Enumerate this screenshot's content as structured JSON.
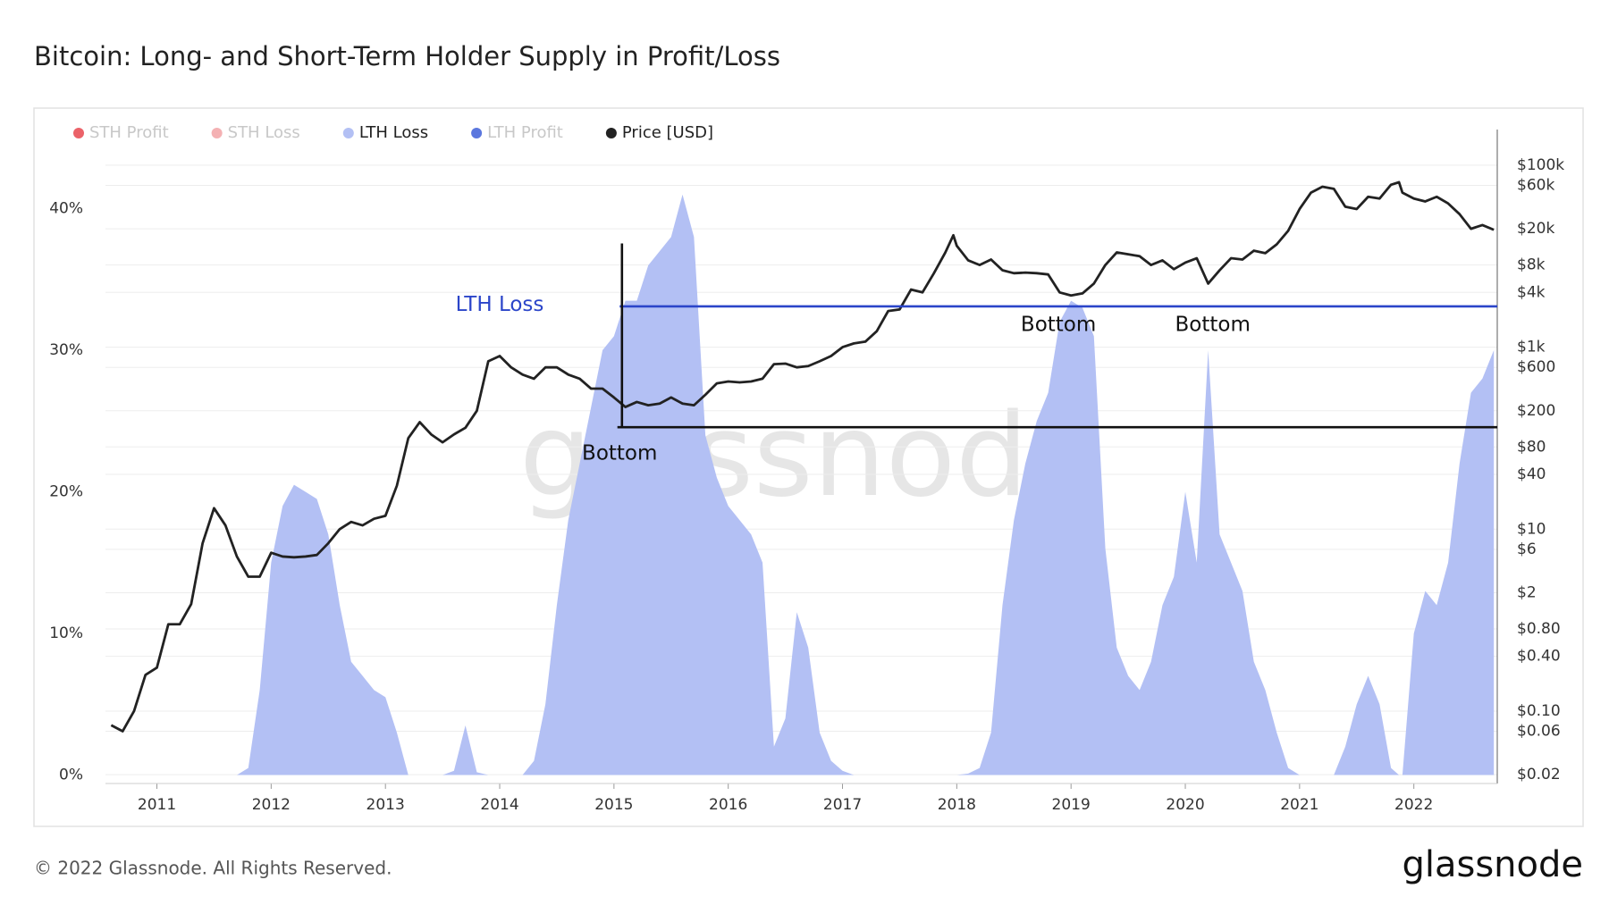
{
  "chart_data": {
    "type": "area",
    "title": "Bitcoin: Long- and Short-Term Holder Supply in Profit/Loss",
    "watermark": "glassnode",
    "footer": "© 2022 Glassnode. All Rights Reserved.",
    "logo": "glassnode",
    "x": [
      2010.6,
      2010.7,
      2010.8,
      2010.9,
      2011.0,
      2011.1,
      2011.2,
      2011.3,
      2011.4,
      2011.5,
      2011.6,
      2011.7,
      2011.8,
      2011.9,
      2012.0,
      2012.1,
      2012.2,
      2012.3,
      2012.4,
      2012.5,
      2012.6,
      2012.7,
      2012.8,
      2012.9,
      2013.0,
      2013.1,
      2013.2,
      2013.3,
      2013.4,
      2013.5,
      2013.6,
      2013.7,
      2013.8,
      2013.9,
      2014.0,
      2014.1,
      2014.2,
      2014.3,
      2014.4,
      2014.5,
      2014.6,
      2014.7,
      2014.8,
      2014.9,
      2015.0,
      2015.1,
      2015.2,
      2015.3,
      2015.4,
      2015.5,
      2015.6,
      2015.7,
      2015.8,
      2015.9,
      2016.0,
      2016.1,
      2016.2,
      2016.3,
      2016.4,
      2016.5,
      2016.6,
      2016.7,
      2016.8,
      2016.9,
      2017.0,
      2017.1,
      2017.2,
      2017.3,
      2017.4,
      2017.5,
      2017.6,
      2017.7,
      2017.8,
      2017.9,
      2017.97,
      2018.0,
      2018.1,
      2018.2,
      2018.3,
      2018.4,
      2018.5,
      2018.6,
      2018.7,
      2018.8,
      2018.9,
      2019.0,
      2019.1,
      2019.2,
      2019.3,
      2019.4,
      2019.5,
      2019.6,
      2019.7,
      2019.8,
      2019.9,
      2020.0,
      2020.1,
      2020.2,
      2020.3,
      2020.4,
      2020.5,
      2020.6,
      2020.7,
      2020.8,
      2020.9,
      2021.0,
      2021.1,
      2021.2,
      2021.3,
      2021.4,
      2021.5,
      2021.6,
      2021.7,
      2021.8,
      2021.87,
      2021.9,
      2022.0,
      2022.1,
      2022.2,
      2022.3,
      2022.4,
      2022.5,
      2022.6,
      2022.7
    ],
    "series": [
      {
        "name": "STH Profit",
        "color": "#e8464f",
        "visible": false
      },
      {
        "name": "STH Loss",
        "color": "#f2a3a6",
        "visible": false
      },
      {
        "name": "LTH Loss",
        "color": "#b3c0f4",
        "type": "area",
        "axis": "y",
        "values": [
          0,
          0,
          0,
          0,
          0,
          0,
          0,
          0,
          0,
          0,
          0,
          0,
          0.5,
          6,
          15,
          19,
          20.5,
          20,
          19.5,
          17,
          12,
          8,
          7,
          6,
          5.5,
          3,
          0,
          0,
          0,
          0,
          0.3,
          3.5,
          0.2,
          0,
          0,
          0,
          0,
          1,
          5,
          12,
          18,
          22,
          26,
          30,
          31,
          33.5,
          33.5,
          36,
          37,
          38,
          41,
          38,
          24,
          21,
          19,
          18,
          17,
          15,
          2,
          4,
          11.5,
          9,
          3,
          1,
          0.3,
          0,
          0,
          0,
          0,
          0,
          0,
          0,
          0,
          0,
          0,
          0,
          0.1,
          0.5,
          3,
          12,
          18,
          22,
          25,
          27,
          32,
          33.5,
          33,
          31,
          16,
          9,
          7,
          6,
          8,
          12,
          14,
          20,
          15,
          30,
          17,
          15,
          13,
          8,
          6,
          3,
          0.5,
          0,
          0,
          0,
          0,
          2,
          5,
          7,
          5,
          0.5,
          0,
          0,
          10,
          13,
          12,
          15,
          22,
          27,
          28,
          30
        ]
      },
      {
        "name": "LTH Profit",
        "color": "#3e5fd8",
        "visible": false
      },
      {
        "name": "Price [USD]",
        "color": "#222222",
        "type": "line",
        "axis": "y2",
        "values": [
          0.07,
          0.06,
          0.1,
          0.25,
          0.3,
          0.9,
          0.9,
          1.5,
          7,
          17,
          11,
          5,
          3,
          3,
          5.5,
          5,
          4.9,
          5,
          5.2,
          7,
          10,
          12,
          11,
          13,
          14,
          30,
          100,
          150,
          110,
          90,
          110,
          130,
          200,
          700,
          800,
          600,
          500,
          450,
          600,
          600,
          500,
          450,
          350,
          350,
          280,
          220,
          250,
          230,
          240,
          280,
          240,
          230,
          300,
          400,
          420,
          410,
          420,
          450,
          650,
          660,
          600,
          620,
          700,
          800,
          1000,
          1100,
          1150,
          1500,
          2500,
          2600,
          4300,
          4000,
          6500,
          11000,
          17000,
          13000,
          9000,
          8000,
          9200,
          7000,
          6500,
          6600,
          6500,
          6300,
          4000,
          3700,
          3900,
          5000,
          8000,
          11000,
          10500,
          10000,
          8000,
          9000,
          7200,
          8500,
          9500,
          5000,
          7000,
          9500,
          9200,
          11500,
          10800,
          13500,
          19000,
          33000,
          50000,
          58000,
          55000,
          35000,
          33000,
          45000,
          43000,
          61000,
          65000,
          50000,
          43000,
          40000,
          45000,
          38000,
          29000,
          20000,
          22000,
          19500
        ]
      }
    ],
    "xlim": [
      2010.55,
      2022.73
    ],
    "xticks": [
      2011,
      2012,
      2013,
      2014,
      2015,
      2016,
      2017,
      2018,
      2019,
      2020,
      2021,
      2022
    ],
    "ylim": [
      -0.6,
      44.2
    ],
    "yticks": [
      {
        "value": 0,
        "label": "0%"
      },
      {
        "value": 10,
        "label": "10%"
      },
      {
        "value": 20,
        "label": "20%"
      },
      {
        "value": 30,
        "label": "30%"
      },
      {
        "value": 40,
        "label": "40%"
      }
    ],
    "y2lim": [
      0.016,
      150000
    ],
    "y2_log": true,
    "y2ticks": [
      {
        "value": 0.02,
        "label": "$0.02"
      },
      {
        "value": 0.06,
        "label": "$0.06"
      },
      {
        "value": 0.1,
        "label": "$0.10"
      },
      {
        "value": 0.4,
        "label": "$0.40"
      },
      {
        "value": 0.8,
        "label": "$0.80"
      },
      {
        "value": 2,
        "label": "$2"
      },
      {
        "value": 6,
        "label": "$6"
      },
      {
        "value": 10,
        "label": "$10"
      },
      {
        "value": 40,
        "label": "$40"
      },
      {
        "value": 80,
        "label": "$80"
      },
      {
        "value": 200,
        "label": "$200"
      },
      {
        "value": 600,
        "label": "$600"
      },
      {
        "value": 1000,
        "label": "$1k"
      },
      {
        "value": 4000,
        "label": "$4k"
      },
      {
        "value": 8000,
        "label": "$8k"
      },
      {
        "value": 20000,
        "label": "$20k"
      },
      {
        "value": 60000,
        "label": "$60k"
      },
      {
        "value": 100000,
        "label": "$100k"
      }
    ],
    "grid": true,
    "legend": "top-left",
    "lines": [
      {
        "axis": "y",
        "x": [
          2015.05,
          2022.73
        ],
        "y": [
          33.1,
          33.1
        ],
        "color": "#2b45c9"
      },
      {
        "axis": "y2",
        "x": [
          2015.03,
          2022.73
        ],
        "y": [
          132,
          132
        ],
        "color": "#111111"
      },
      {
        "axis": "y2",
        "x": [
          2015.07,
          2015.07
        ],
        "y": [
          132,
          13800
        ],
        "color": "#111111"
      }
    ],
    "annotations": [
      {
        "text": "LTH Loss",
        "x": 2014.0,
        "y": 33.2,
        "axis": "y",
        "color": "#2b45c9"
      },
      {
        "text": "Bottom",
        "x": 2015.05,
        "y": 67,
        "axis": "y2",
        "color": "#111111"
      },
      {
        "text": "Bottom",
        "x": 2018.89,
        "y": 1750,
        "axis": "y2",
        "color": "#111111"
      },
      {
        "text": "Bottom",
        "x": 2020.24,
        "y": 1750,
        "axis": "y2",
        "color": "#111111"
      }
    ]
  }
}
